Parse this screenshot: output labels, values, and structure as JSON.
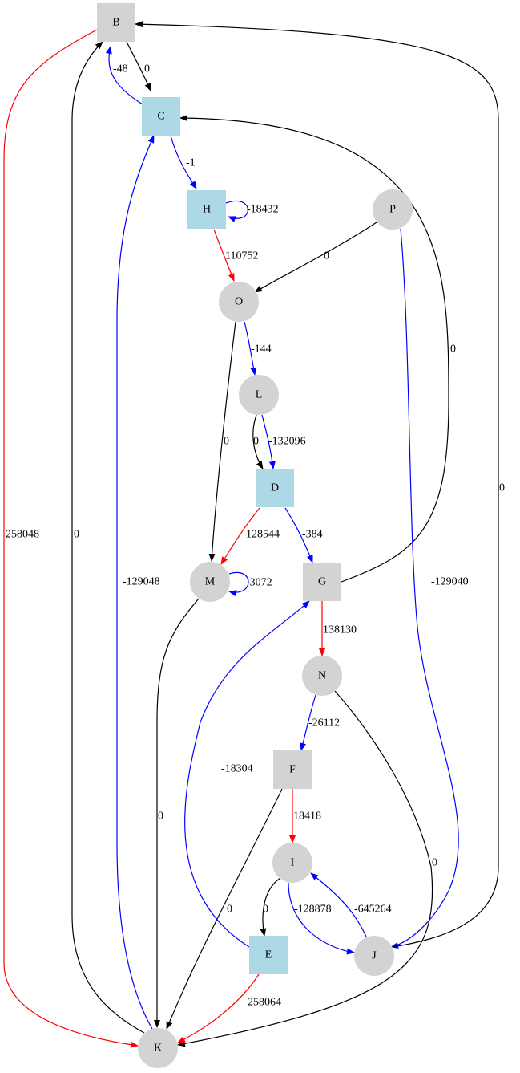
{
  "colors": {
    "box_blue": "#add8e6",
    "box_gray": "#d3d3d3",
    "circle_gray": "#d3d3d3",
    "edge_black": "#000000",
    "edge_blue": "#0000ff",
    "edge_red": "#ff0000"
  },
  "nodes": [
    {
      "id": "B",
      "label": "B",
      "shape": "box",
      "fill": "gray"
    },
    {
      "id": "C",
      "label": "C",
      "shape": "box",
      "fill": "blue"
    },
    {
      "id": "H",
      "label": "H",
      "shape": "box",
      "fill": "blue"
    },
    {
      "id": "P",
      "label": "P",
      "shape": "circle",
      "fill": "gray"
    },
    {
      "id": "O",
      "label": "O",
      "shape": "circle",
      "fill": "gray"
    },
    {
      "id": "L",
      "label": "L",
      "shape": "circle",
      "fill": "gray"
    },
    {
      "id": "D",
      "label": "D",
      "shape": "box",
      "fill": "blue"
    },
    {
      "id": "M",
      "label": "M",
      "shape": "circle",
      "fill": "gray"
    },
    {
      "id": "G",
      "label": "G",
      "shape": "box",
      "fill": "gray"
    },
    {
      "id": "N",
      "label": "N",
      "shape": "circle",
      "fill": "gray"
    },
    {
      "id": "F",
      "label": "F",
      "shape": "box",
      "fill": "gray"
    },
    {
      "id": "I",
      "label": "I",
      "shape": "circle",
      "fill": "gray"
    },
    {
      "id": "E",
      "label": "E",
      "shape": "box",
      "fill": "blue"
    },
    {
      "id": "J",
      "label": "J",
      "shape": "circle",
      "fill": "gray"
    },
    {
      "id": "K",
      "label": "K",
      "shape": "circle",
      "fill": "gray"
    }
  ],
  "edges": [
    {
      "id": "B-C",
      "from": "B",
      "to": "C",
      "label": "0",
      "color": "black"
    },
    {
      "id": "C-B",
      "from": "C",
      "to": "B",
      "label": "-48",
      "color": "blue"
    },
    {
      "id": "C-H",
      "from": "C",
      "to": "H",
      "label": "-1",
      "color": "blue"
    },
    {
      "id": "H-H",
      "from": "H",
      "to": "H",
      "label": "-18432",
      "color": "blue"
    },
    {
      "id": "H-O",
      "from": "H",
      "to": "O",
      "label": "110752",
      "color": "red"
    },
    {
      "id": "P-O",
      "from": "P",
      "to": "O",
      "label": "0",
      "color": "black"
    },
    {
      "id": "O-L",
      "from": "O",
      "to": "L",
      "label": "-144",
      "color": "blue"
    },
    {
      "id": "O-M",
      "from": "O",
      "to": "M",
      "label": "0",
      "color": "black"
    },
    {
      "id": "L-D-black",
      "from": "L",
      "to": "D",
      "label": "0",
      "color": "black"
    },
    {
      "id": "L-D-blue",
      "from": "L",
      "to": "D",
      "label": "-132096",
      "color": "blue"
    },
    {
      "id": "D-M",
      "from": "D",
      "to": "M",
      "label": "128544",
      "color": "red"
    },
    {
      "id": "D-G",
      "from": "D",
      "to": "G",
      "label": "-384",
      "color": "blue"
    },
    {
      "id": "M-M",
      "from": "M",
      "to": "M",
      "label": "-3072",
      "color": "blue"
    },
    {
      "id": "G-C",
      "from": "G",
      "to": "C",
      "label": "0",
      "color": "black"
    },
    {
      "id": "G-N",
      "from": "G",
      "to": "N",
      "label": "138130",
      "color": "red"
    },
    {
      "id": "N-F",
      "from": "N",
      "to": "F",
      "label": "-26112",
      "color": "blue"
    },
    {
      "id": "N-K",
      "from": "N",
      "to": "K",
      "label": "0",
      "color": "black"
    },
    {
      "id": "F-I",
      "from": "F",
      "to": "I",
      "label": "18418",
      "color": "red"
    },
    {
      "id": "F-K",
      "from": "F",
      "to": "K",
      "label": "0",
      "color": "black"
    },
    {
      "id": "I-E",
      "from": "I",
      "to": "E",
      "label": "0",
      "color": "black"
    },
    {
      "id": "I-J",
      "from": "I",
      "to": "J",
      "label": "-128878",
      "color": "blue"
    },
    {
      "id": "J-I",
      "from": "J",
      "to": "I",
      "label": "-645264",
      "color": "blue"
    },
    {
      "id": "E-G",
      "from": "E",
      "to": "G",
      "label": "-18304",
      "color": "blue"
    },
    {
      "id": "E-K",
      "from": "E",
      "to": "K",
      "label": "258064",
      "color": "red"
    },
    {
      "id": "P-J",
      "from": "P",
      "to": "J",
      "label": "-129040",
      "color": "blue"
    },
    {
      "id": "J-B",
      "from": "J",
      "to": "B",
      "label": "0",
      "color": "black"
    },
    {
      "id": "B-K",
      "from": "B",
      "to": "K",
      "label": "258048",
      "color": "red"
    },
    {
      "id": "K-B",
      "from": "K",
      "to": "B",
      "label": "0",
      "color": "black"
    },
    {
      "id": "K-C",
      "from": "K",
      "to": "C",
      "label": "-129048",
      "color": "blue"
    },
    {
      "id": "M-K",
      "from": "M",
      "to": "K",
      "label": "0",
      "color": "black"
    }
  ]
}
